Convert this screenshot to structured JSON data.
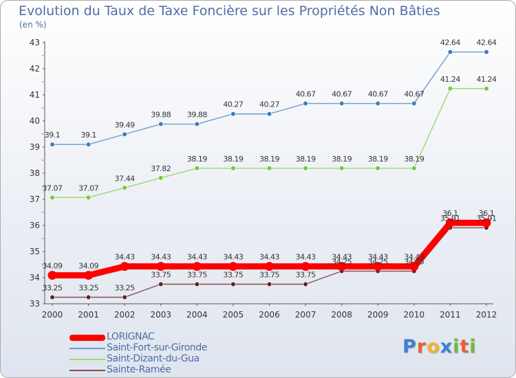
{
  "title": "Evolution du Taux de Taxe Foncière sur les Propriétés Non Bâties",
  "unit_label": "(en %)",
  "logo": {
    "text": "Proxiti",
    "letters": [
      "P",
      "r",
      "o",
      "x",
      "i",
      "t",
      "i"
    ],
    "colors": [
      "#3f80d0",
      "#e8602c",
      "#f2b233",
      "#3f80d0",
      "#73b53d",
      "#e8602c",
      "#73b53d"
    ]
  },
  "chart_data": {
    "type": "line",
    "title": "Evolution du Taux de Taxe Foncière sur les Propriétés Non Bâties",
    "ylabel": "(en %)",
    "xlabel": "",
    "x": [
      "2000",
      "2001",
      "2002",
      "2003",
      "2004",
      "2005",
      "2006",
      "2007",
      "2008",
      "2009",
      "2010",
      "2011",
      "2012"
    ],
    "ylim": [
      33,
      43
    ],
    "yticks": [
      "33",
      "34",
      "35",
      "36",
      "37",
      "38",
      "39",
      "40",
      "41",
      "42",
      "43"
    ],
    "grid": false,
    "legend_position": "bottom-left",
    "series": [
      {
        "name": "LORIGNAC",
        "color": "#ff0000",
        "markerColor": "#ff0000",
        "thick": true,
        "values": [
          34.09,
          34.09,
          34.43,
          34.43,
          34.43,
          34.43,
          34.43,
          34.43,
          34.43,
          34.43,
          34.43,
          36.1,
          36.1
        ],
        "labels": [
          "34.09",
          "34.09",
          "34.43",
          "34.43",
          "34.43",
          "34.43",
          "34.43",
          "34.43",
          "34.43",
          "34.43",
          "34.43",
          "36.1",
          "36.1"
        ]
      },
      {
        "name": "Saint-Fort-sur-Gironde",
        "color": "#6b9bd1",
        "markerColor": "#3d7cc0",
        "thick": false,
        "values": [
          39.1,
          39.1,
          39.49,
          39.88,
          39.88,
          40.27,
          40.27,
          40.67,
          40.67,
          40.67,
          40.67,
          42.64,
          42.64
        ],
        "labels": [
          "39.1",
          "39.1",
          "39.49",
          "39.88",
          "39.88",
          "40.27",
          "40.27",
          "40.67",
          "40.67",
          "40.67",
          "40.67",
          "42.64",
          "42.64"
        ]
      },
      {
        "name": "Saint-Dizant-du-Gua",
        "color": "#99d96b",
        "markerColor": "#73c93b",
        "thick": false,
        "values": [
          37.07,
          37.07,
          37.44,
          37.82,
          38.19,
          38.19,
          38.19,
          38.19,
          38.19,
          38.19,
          38.19,
          41.24,
          41.24
        ],
        "labels": [
          "37.07",
          "37.07",
          "37.44",
          "37.82",
          "38.19",
          "38.19",
          "38.19",
          "38.19",
          "38.19",
          "38.19",
          "38.19",
          "41.24",
          "41.24"
        ]
      },
      {
        "name": "Sainte-Ramée",
        "color": "#8b4a4a",
        "markerColor": "#6b1f1f",
        "thick": false,
        "values": [
          33.25,
          33.25,
          33.25,
          33.75,
          33.75,
          33.75,
          33.75,
          33.75,
          34.25,
          34.25,
          34.25,
          35.91,
          35.91
        ],
        "labels": [
          "33.25",
          "33.25",
          "33.25",
          "33.75",
          "33.75",
          "33.75",
          "33.75",
          "33.75",
          "34.25",
          "34.25",
          "34.25",
          "35.91",
          "35.91"
        ]
      }
    ]
  }
}
